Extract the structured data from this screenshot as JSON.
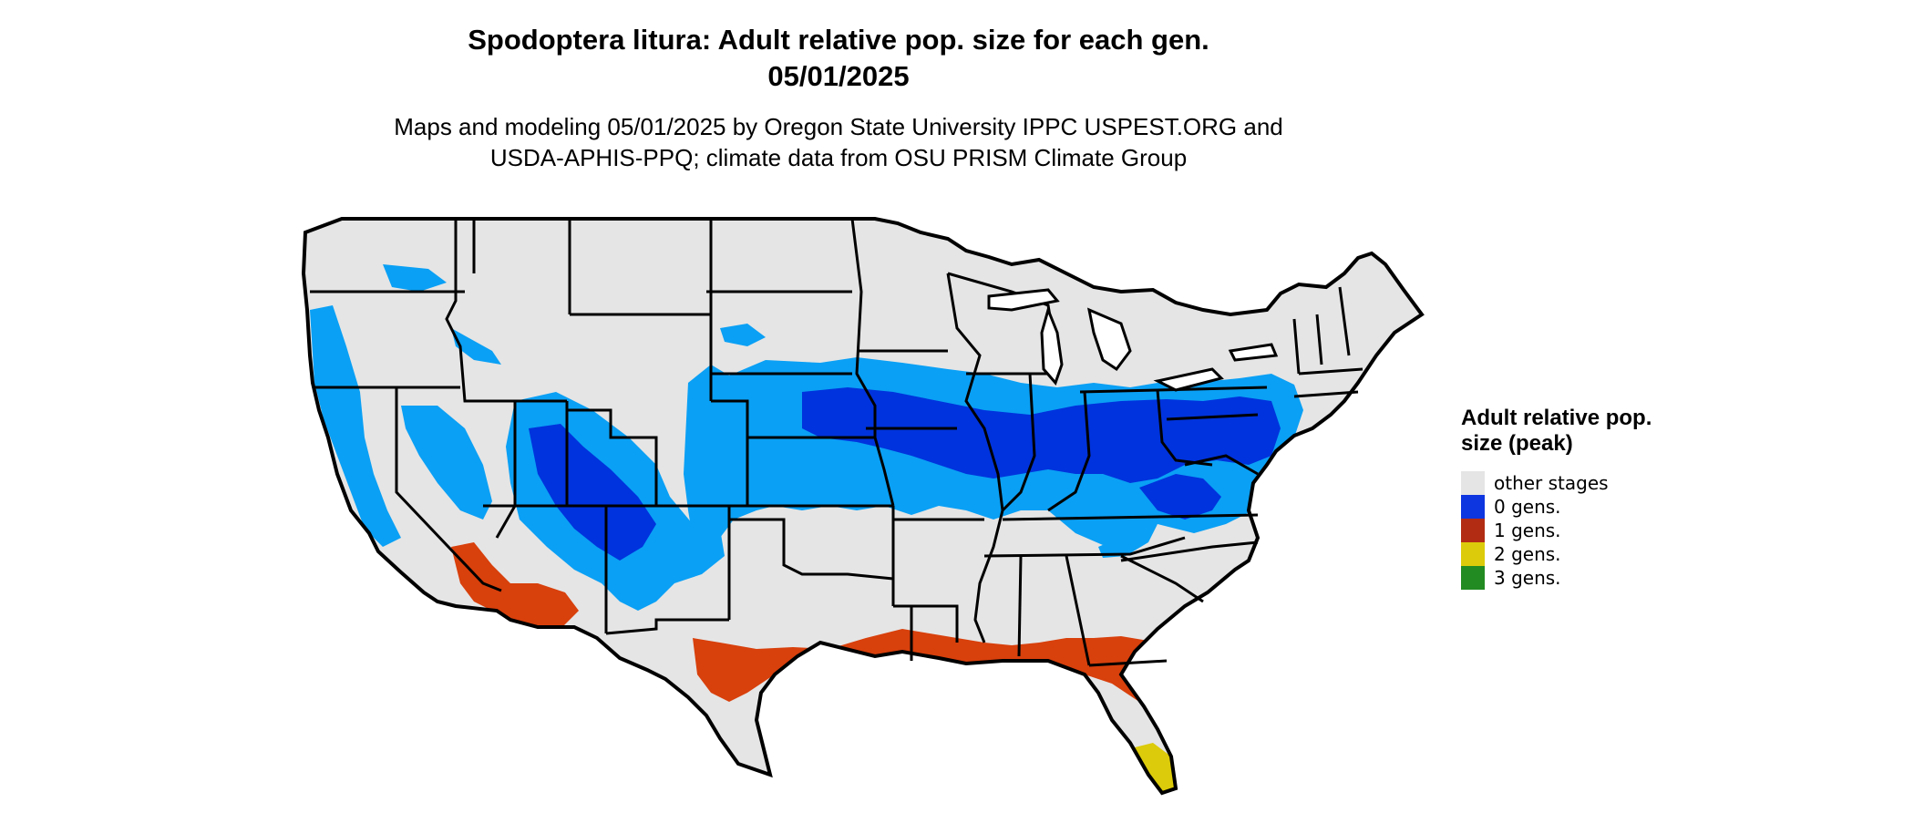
{
  "title": {
    "line1": "Spodoptera litura: Adult relative pop. size for each gen.",
    "line2": "05/01/2025"
  },
  "subtitle": {
    "line1": "Maps and modeling 05/01/2025 by Oregon State University IPPC USPEST.ORG and",
    "line2": "USDA-APHIS-PPQ; climate data from OSU PRISM Climate Group"
  },
  "legend": {
    "title": "Adult relative pop. size (peak)",
    "items": [
      {
        "label": "other stages",
        "color": "#e5e5e5"
      },
      {
        "label": "0 gens.",
        "color": "#0d35e0"
      },
      {
        "label": "1 gens.",
        "color": "#b22c14"
      },
      {
        "label": "2 gens.",
        "color": "#dccb0a"
      },
      {
        "label": "3 gens.",
        "color": "#228b22"
      }
    ]
  },
  "map": {
    "land_color": "#e5e5e5",
    "border_color": "#000000",
    "zone_colors": {
      "zero_gens_dark": "#0033dd",
      "zero_gens_light": "#0aa0f5",
      "one_gen": "#d8400c",
      "two_gens": "#dccb0a"
    }
  }
}
